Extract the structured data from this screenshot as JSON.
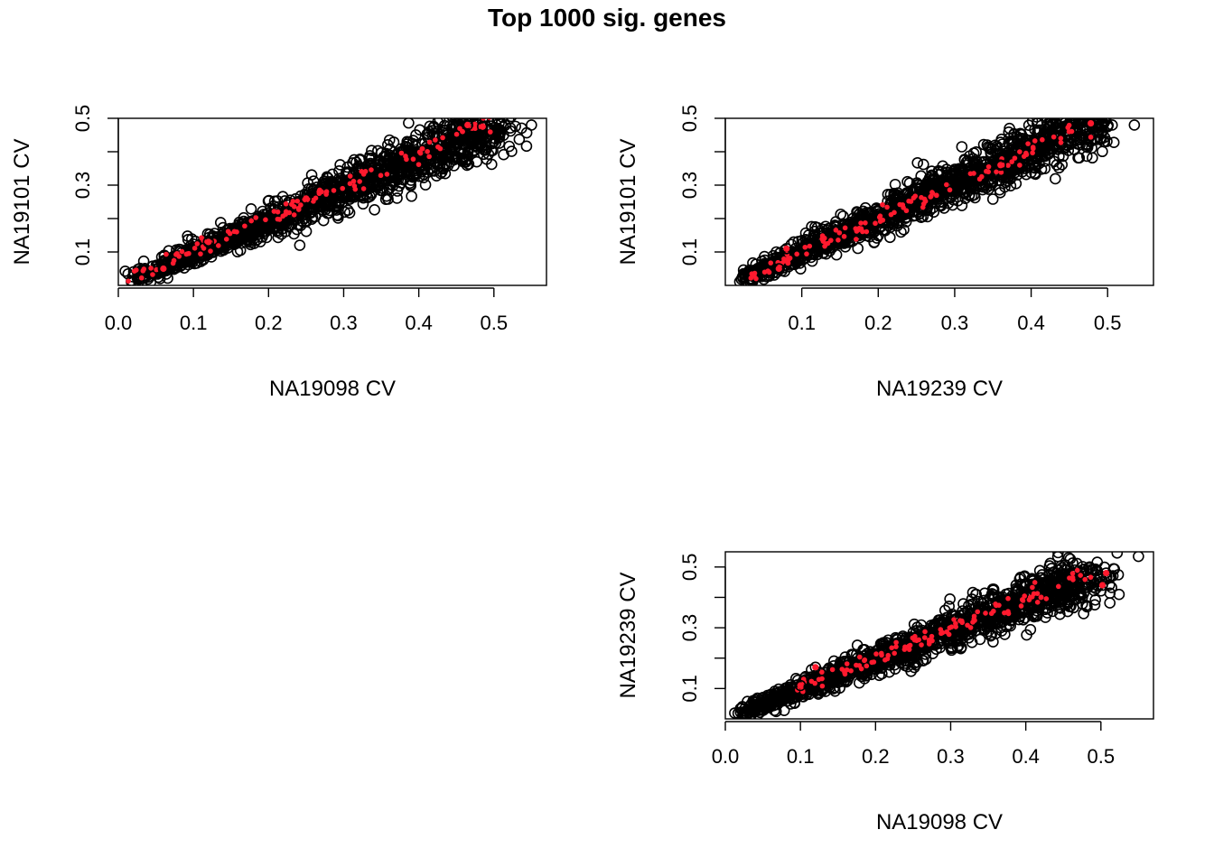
{
  "title": "Top 1000 sig. genes",
  "colors": {
    "background_points": "#000000",
    "highlight_points": "#ff1a2e"
  },
  "chart_data": [
    {
      "type": "scatter",
      "xlabel": "NA19098 CV",
      "ylabel": "NA19101 CV",
      "xlim": [
        0.0,
        0.57
      ],
      "ylim": [
        0.0,
        0.5
      ],
      "xticks": [
        "0.0",
        "0.1",
        "0.2",
        "0.3",
        "0.4",
        "0.5"
      ],
      "yticks": [
        "0.1",
        "0.3",
        "0.5"
      ],
      "minor_yticks": [
        0.2,
        0.4
      ],
      "cloud": {
        "x_range": [
          0.02,
          0.5
        ],
        "slope": 0.95,
        "intercept": 0.0,
        "spread": 0.03
      },
      "outliers": [
        [
          0.55,
          0.48
        ],
        [
          0.51,
          0.485
        ],
        [
          0.505,
          0.47
        ],
        [
          0.5,
          0.43
        ]
      ],
      "highlight_band": {
        "x_range": [
          0.02,
          0.49
        ],
        "slope": 0.98,
        "intercept": 0.005,
        "spread": 0.012
      },
      "highlight_points": [
        [
          0.465,
          0.48
        ],
        [
          0.485,
          0.475
        ],
        [
          0.12,
          0.13
        ],
        [
          0.25,
          0.26
        ],
        [
          0.06,
          0.05
        ]
      ]
    },
    {
      "type": "scatter",
      "xlabel": "NA19239 CV",
      "ylabel": "NA19101 CV",
      "xlim": [
        0.0,
        0.56
      ],
      "ylim": [
        0.0,
        0.5
      ],
      "xticks": [
        "0.1",
        "0.2",
        "0.3",
        "0.4",
        "0.5"
      ],
      "yticks": [
        "0.1",
        "0.3",
        "0.5"
      ],
      "minor_yticks": [
        0.2,
        0.4
      ],
      "cloud": {
        "x_range": [
          0.02,
          0.48
        ],
        "slope": 1.02,
        "intercept": -0.005,
        "spread": 0.03
      },
      "outliers": [
        [
          0.535,
          0.48
        ],
        [
          0.5,
          0.475
        ],
        [
          0.495,
          0.43
        ]
      ],
      "highlight_band": {
        "x_range": [
          0.03,
          0.47
        ],
        "slope": 1.0,
        "intercept": 0.0,
        "spread": 0.012
      },
      "highlight_points": [
        [
          0.478,
          0.485
        ],
        [
          0.36,
          0.36
        ],
        [
          0.08,
          0.11
        ],
        [
          0.07,
          0.05
        ]
      ]
    },
    {
      "type": "scatter",
      "xlabel": "NA19098 CV",
      "ylabel": "NA19239 CV",
      "xlim": [
        0.0,
        0.57
      ],
      "ylim": [
        0.0,
        0.55
      ],
      "xticks": [
        "0.0",
        "0.1",
        "0.2",
        "0.3",
        "0.4",
        "0.5"
      ],
      "yticks": [
        "0.1",
        "0.3",
        "0.5"
      ],
      "minor_yticks": [
        0.2,
        0.4
      ],
      "cloud": {
        "x_range": [
          0.02,
          0.49
        ],
        "slope": 0.97,
        "intercept": 0.0,
        "spread": 0.03
      },
      "outliers": [
        [
          0.55,
          0.535
        ],
        [
          0.485,
          0.5
        ],
        [
          0.465,
          0.49
        ],
        [
          0.5,
          0.47
        ]
      ],
      "highlight_band": {
        "x_range": [
          0.1,
          0.48
        ],
        "slope": 0.98,
        "intercept": 0.005,
        "spread": 0.013
      },
      "highlight_points": [
        [
          0.507,
          0.48
        ],
        [
          0.502,
          0.44
        ],
        [
          0.1,
          0.11
        ],
        [
          0.12,
          0.17
        ]
      ]
    }
  ]
}
